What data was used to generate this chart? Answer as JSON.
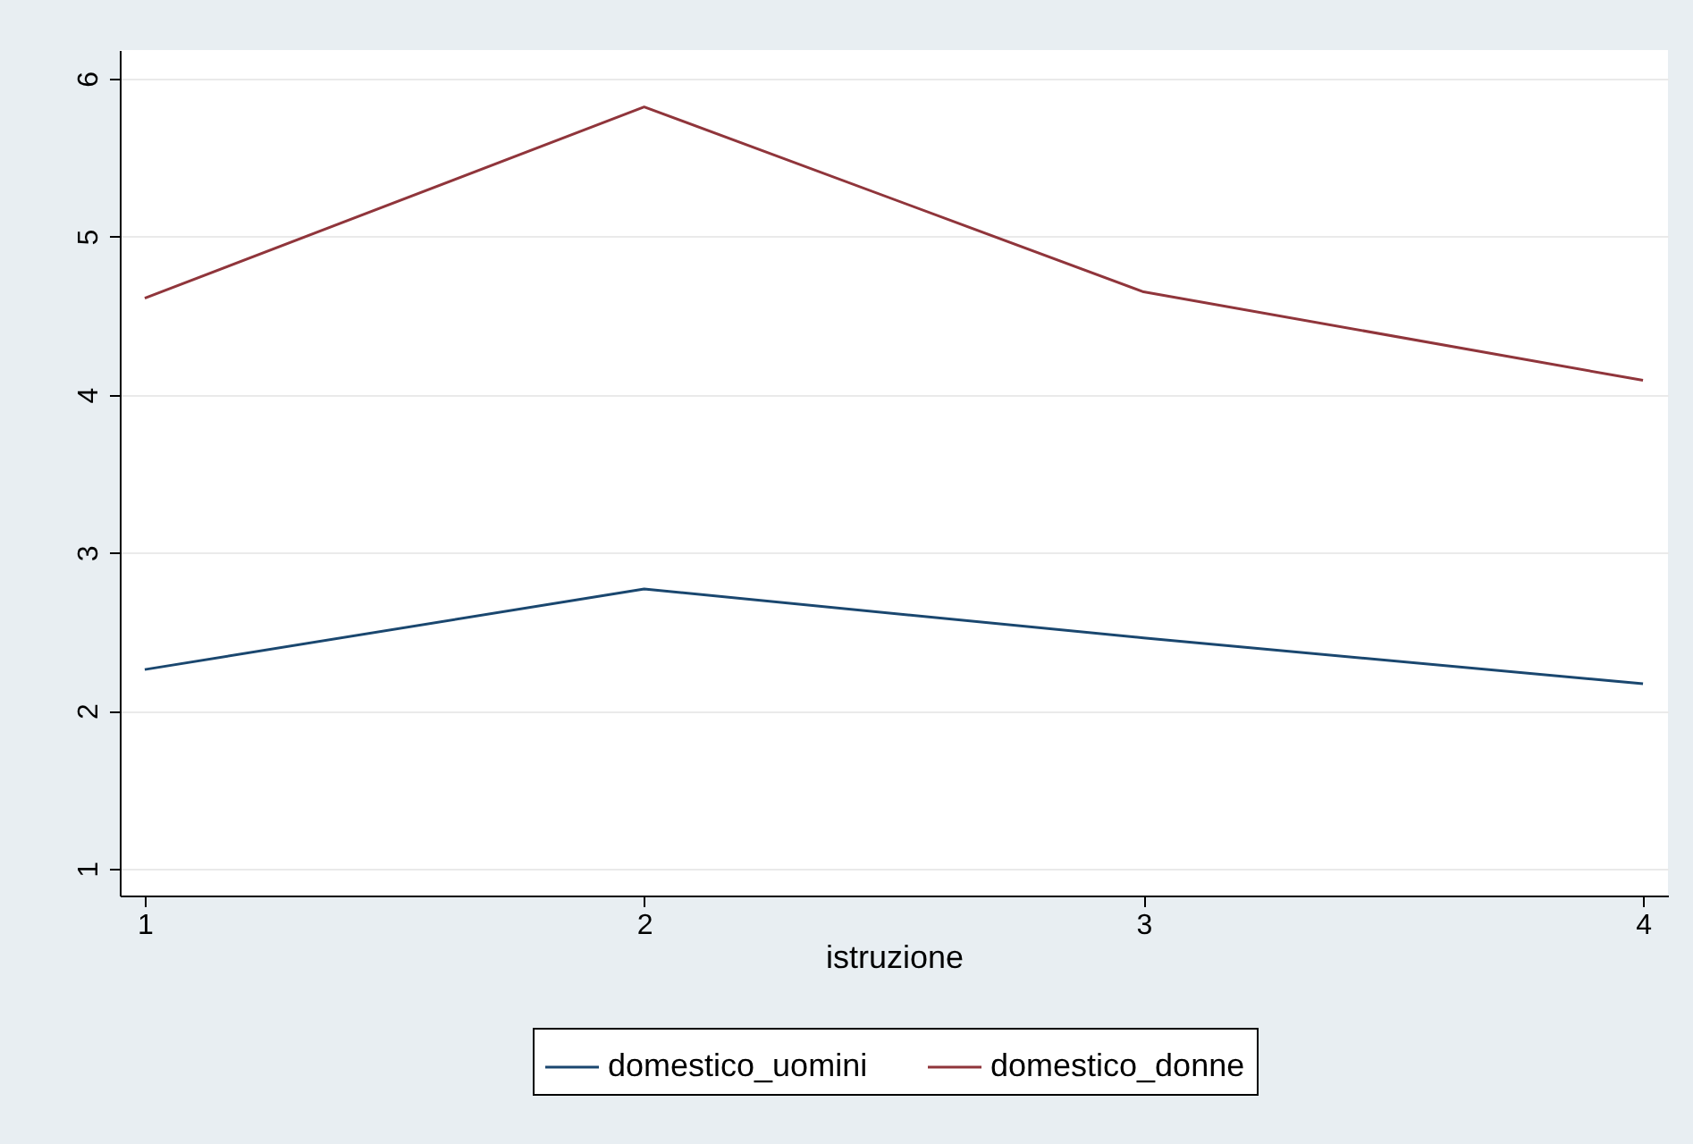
{
  "chart_data": {
    "type": "line",
    "xlabel": "istruzione",
    "x": [
      1,
      2,
      3,
      4
    ],
    "series": [
      {
        "name": "domestico_uomini",
        "color": "#1a476f",
        "values": [
          2.26,
          2.77,
          2.46,
          2.17
        ]
      },
      {
        "name": "domestico_donne",
        "color": "#90353b",
        "values": [
          4.61,
          5.82,
          4.65,
          4.09
        ]
      }
    ],
    "xlim": [
      0.95,
      4.05
    ],
    "xticks": [
      1,
      2,
      3,
      4
    ],
    "ylim": [
      0.83,
      6.18
    ],
    "yticks": [
      1,
      2,
      3,
      4,
      5,
      6
    ],
    "grid": "y",
    "legend": "bottom",
    "marker": "none",
    "line_style": "solid"
  }
}
